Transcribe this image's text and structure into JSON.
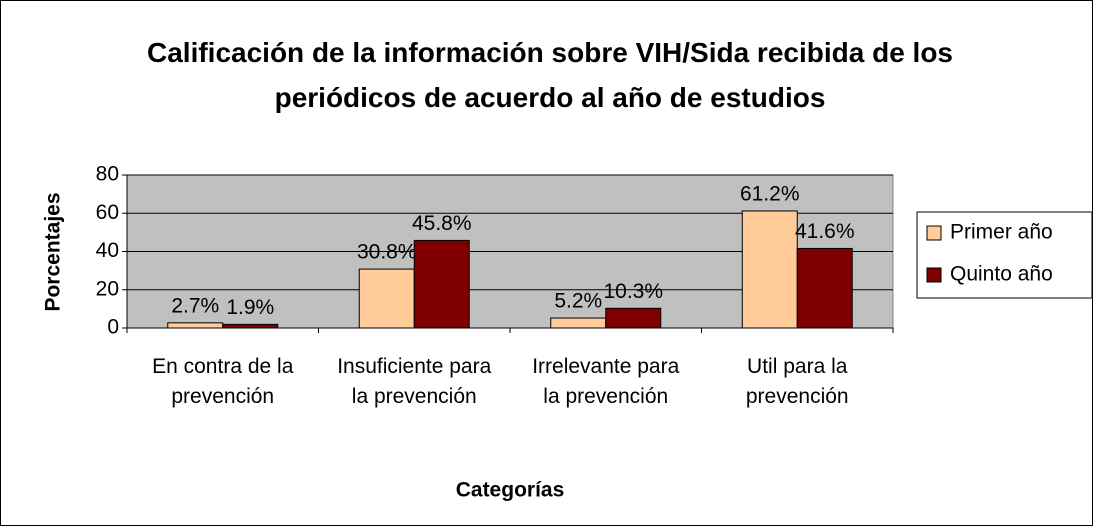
{
  "chart_data": {
    "type": "bar",
    "title": "Calificación de la información sobre VIH/Sida recibida de los periódicos de acuerdo al año de estudios",
    "x_label": "Categorías",
    "y_label": "Porcentajes",
    "categories": [
      "En contra de la prevención",
      "Insuficiente para la prevención",
      "Irrelevante para la prevención",
      "Util para la prevención"
    ],
    "series": [
      {
        "name": "Primer año",
        "color": "#ffcc99",
        "values": [
          2.7,
          30.8,
          5.2,
          61.2
        ],
        "value_labels": [
          "2.7%",
          "30.8%",
          "5.2%",
          "61.2%"
        ]
      },
      {
        "name": "Quinto año",
        "color": "#800000",
        "values": [
          1.9,
          45.8,
          10.3,
          41.6
        ],
        "value_labels": [
          "1.9%",
          "45.8%",
          "10.3%",
          "41.6%"
        ]
      }
    ],
    "ylim": [
      0,
      80
    ],
    "yticks": [
      0,
      20,
      40,
      60,
      80
    ],
    "grid": true,
    "plot_background": "#c0c0c0",
    "legend": "right"
  }
}
